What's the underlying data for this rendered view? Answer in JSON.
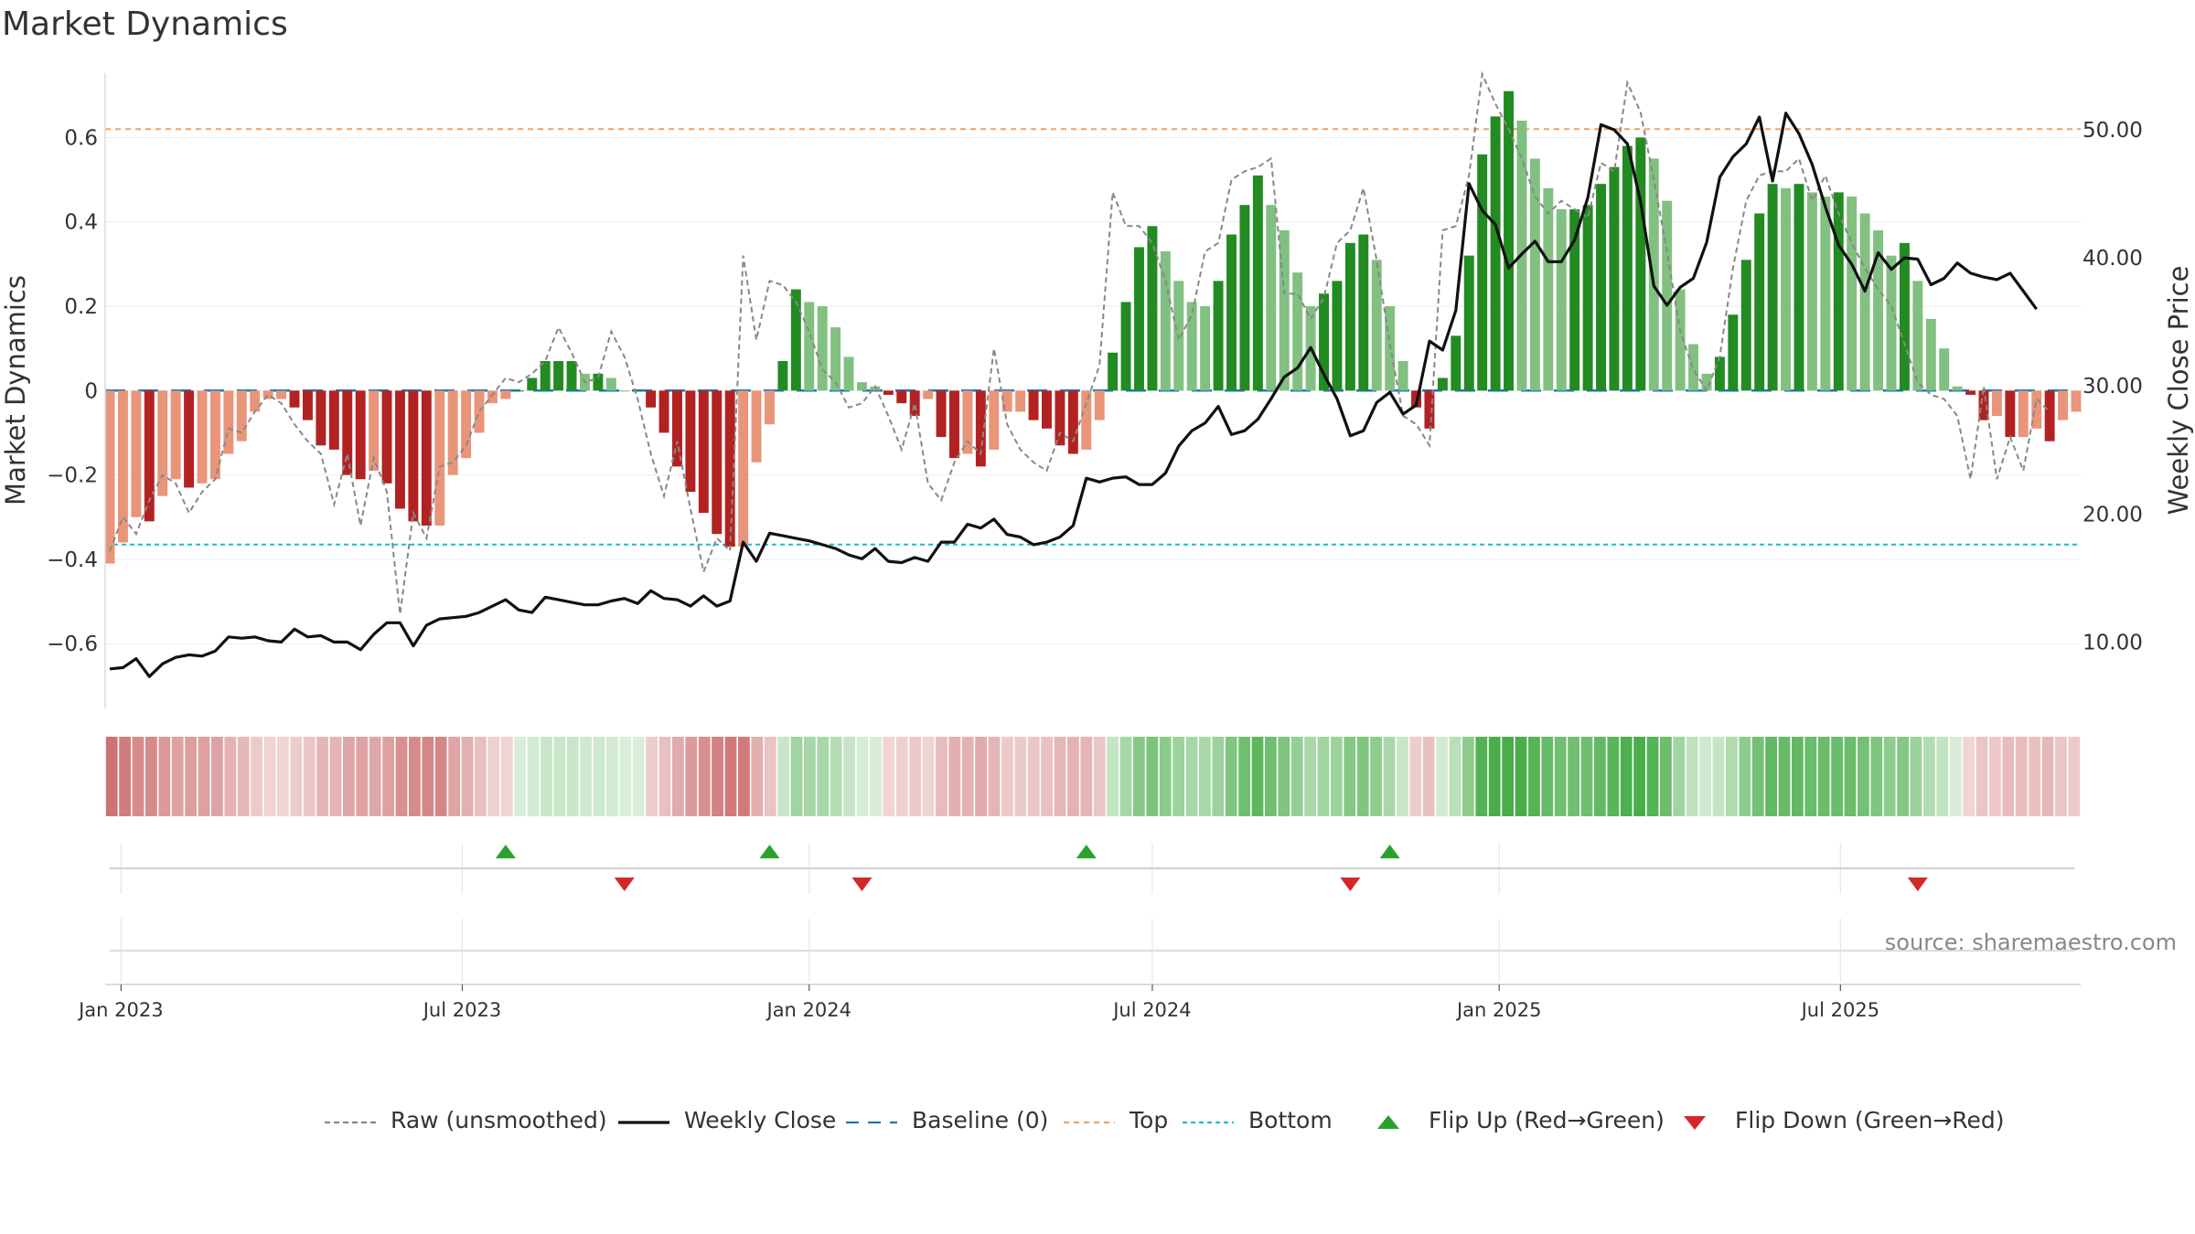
{
  "title": "Market Dynamics",
  "source": "source: sharemaestro.com",
  "colors": {
    "strong_green": "#228b22",
    "light_green": "#81c081",
    "strong_red": "#b22222",
    "light_red": "#e8957a",
    "raw": "#888888",
    "close": "#111111",
    "baseline": "#1f77b4",
    "top": "#f4a261",
    "bottom": "#17becf",
    "flip_up": "#2ca02c",
    "flip_down": "#d62728"
  },
  "legend": [
    {
      "key": "raw",
      "label": "Raw (unsmoothed)"
    },
    {
      "key": "close",
      "label": "Weekly Close"
    },
    {
      "key": "baseline",
      "label": "Baseline (0)"
    },
    {
      "key": "top",
      "label": "Top"
    },
    {
      "key": "bottom",
      "label": "Bottom"
    },
    {
      "key": "flip_up",
      "label": "Flip Up (Red→Green)"
    },
    {
      "key": "flip_down",
      "label": "Flip Down (Green→Red)"
    }
  ],
  "chart_data": {
    "type": "bar",
    "ylabel": "Market Dynamics",
    "y2label": "Weekly Close Price",
    "ylim": [
      -0.76,
      0.77
    ],
    "y2lim": [
      4.6,
      55.0
    ],
    "yticks": [
      -0.6,
      -0.4,
      -0.2,
      0,
      0.2,
      0.4,
      0.6
    ],
    "ytick_labels": [
      "−0.6",
      "−0.4",
      "−0.2",
      "0",
      "0.2",
      "0.4",
      "0.6"
    ],
    "y2ticks": [
      10,
      20,
      30,
      40,
      50
    ],
    "y2tick_labels": [
      "10.00",
      "20.00",
      "30.00",
      "40.00",
      "50.00"
    ],
    "x_start": "2022-12-26",
    "x_step_days": 7,
    "x_end_label": "2025-09",
    "xticks": [
      {
        "date": "2023-01-01",
        "label": "Jan 2023"
      },
      {
        "date": "2023-07-01",
        "label": "Jul 2023"
      },
      {
        "date": "2024-01-01",
        "label": "Jan 2024"
      },
      {
        "date": "2024-07-01",
        "label": "Jul 2024"
      },
      {
        "date": "2025-01-01",
        "label": "Jan 2025"
      },
      {
        "date": "2025-07-01",
        "label": "Jul 2025"
      }
    ],
    "top_threshold": 0.62,
    "bottom_threshold": -0.365,
    "baseline": 0,
    "series": [
      {
        "name": "Market Dynamics (smoothed)",
        "values": [
          -0.41,
          -0.36,
          -0.3,
          -0.31,
          -0.25,
          -0.21,
          -0.23,
          -0.22,
          -0.21,
          -0.15,
          -0.12,
          -0.05,
          -0.02,
          -0.02,
          -0.04,
          -0.07,
          -0.13,
          -0.14,
          -0.2,
          -0.21,
          -0.19,
          -0.22,
          -0.28,
          -0.31,
          -0.32,
          -0.32,
          -0.2,
          -0.16,
          -0.1,
          -0.03,
          -0.02,
          0.0,
          0.03,
          0.07,
          0.07,
          0.07,
          0.04,
          0.04,
          0.03,
          0.0,
          0.0,
          -0.04,
          -0.1,
          -0.18,
          -0.24,
          -0.29,
          -0.34,
          -0.37,
          -0.37,
          -0.17,
          -0.08,
          0.07,
          0.24,
          0.21,
          0.2,
          0.15,
          0.08,
          0.02,
          0.01,
          -0.01,
          -0.03,
          -0.06,
          -0.02,
          -0.11,
          -0.16,
          -0.15,
          -0.18,
          -0.14,
          -0.05,
          -0.05,
          -0.07,
          -0.09,
          -0.13,
          -0.15,
          -0.14,
          -0.07,
          0.09,
          0.21,
          0.34,
          0.39,
          0.33,
          0.26,
          0.21,
          0.2,
          0.26,
          0.37,
          0.44,
          0.51,
          0.44,
          0.38,
          0.28,
          0.2,
          0.23,
          0.26,
          0.35,
          0.37,
          0.31,
          0.2,
          0.07,
          -0.04,
          -0.09,
          0.03,
          0.13,
          0.32,
          0.56,
          0.65,
          0.71,
          0.64,
          0.55,
          0.48,
          0.43,
          0.43,
          0.44,
          0.49,
          0.53,
          0.58,
          0.6,
          0.55,
          0.45,
          0.24,
          0.11,
          0.04,
          0.08,
          0.18,
          0.31,
          0.42,
          0.49,
          0.48,
          0.49,
          0.47,
          0.46,
          0.47,
          0.46,
          0.42,
          0.38,
          0.32,
          0.35,
          0.26,
          0.17,
          0.1,
          0.01,
          -0.01,
          -0.07,
          -0.06,
          -0.11,
          -0.11,
          -0.09,
          -0.12,
          -0.07,
          -0.05
        ]
      },
      {
        "name": "Raw (unsmoothed)",
        "values": [
          -0.38,
          -0.3,
          -0.34,
          -0.26,
          -0.2,
          -0.22,
          -0.29,
          -0.24,
          -0.21,
          -0.09,
          -0.1,
          -0.05,
          -0.01,
          -0.03,
          -0.08,
          -0.12,
          -0.15,
          -0.27,
          -0.15,
          -0.32,
          -0.16,
          -0.24,
          -0.53,
          -0.29,
          -0.35,
          -0.18,
          -0.17,
          -0.13,
          -0.05,
          -0.01,
          0.03,
          0.02,
          0.04,
          0.07,
          0.15,
          0.09,
          0.02,
          0.03,
          0.14,
          0.08,
          -0.02,
          -0.15,
          -0.25,
          -0.12,
          -0.28,
          -0.43,
          -0.35,
          -0.38,
          0.32,
          0.12,
          0.26,
          0.25,
          0.21,
          0.14,
          0.05,
          0.02,
          -0.04,
          -0.03,
          0.01,
          -0.06,
          -0.14,
          -0.03,
          -0.22,
          -0.26,
          -0.17,
          -0.12,
          -0.15,
          0.1,
          -0.08,
          -0.14,
          -0.17,
          -0.19,
          -0.1,
          -0.12,
          -0.03,
          0.06,
          0.47,
          0.39,
          0.39,
          0.35,
          0.26,
          0.12,
          0.18,
          0.33,
          0.35,
          0.5,
          0.52,
          0.53,
          0.55,
          0.23,
          0.23,
          0.17,
          0.22,
          0.35,
          0.38,
          0.48,
          0.31,
          0.11,
          -0.06,
          -0.08,
          -0.13,
          0.38,
          0.39,
          0.51,
          0.75,
          0.68,
          0.62,
          0.55,
          0.46,
          0.42,
          0.45,
          0.43,
          0.41,
          0.54,
          0.52,
          0.73,
          0.66,
          0.5,
          0.33,
          0.14,
          0.05,
          0.0,
          0.08,
          0.29,
          0.45,
          0.51,
          0.52,
          0.52,
          0.55,
          0.45,
          0.51,
          0.42,
          0.35,
          0.29,
          0.24,
          0.2,
          0.11,
          0.02,
          -0.01,
          -0.02,
          -0.06,
          -0.21,
          0.01,
          -0.21,
          -0.11,
          -0.19,
          -0.02,
          -0.05
        ]
      },
      {
        "name": "Weekly Close",
        "values": [
          7.9,
          8.0,
          8.7,
          7.3,
          8.3,
          8.8,
          9.0,
          8.9,
          9.3,
          10.4,
          10.3,
          10.4,
          10.1,
          10.0,
          11.0,
          10.4,
          10.5,
          10.0,
          10.0,
          9.4,
          10.6,
          11.5,
          11.5,
          9.7,
          11.3,
          11.8,
          11.9,
          12.0,
          12.3,
          12.8,
          13.3,
          12.5,
          12.3,
          13.5,
          13.3,
          13.1,
          12.9,
          12.9,
          13.2,
          13.4,
          13.0,
          14.0,
          13.4,
          13.3,
          12.8,
          13.6,
          12.8,
          13.2,
          17.8,
          16.3,
          18.5,
          18.3,
          18.1,
          17.9,
          17.6,
          17.3,
          16.8,
          16.5,
          17.3,
          16.3,
          16.2,
          16.6,
          16.3,
          17.8,
          17.8,
          19.2,
          18.9,
          19.6,
          18.4,
          18.2,
          17.6,
          17.8,
          18.2,
          19.1,
          22.8,
          22.5,
          22.8,
          22.9,
          22.3,
          22.3,
          23.2,
          25.3,
          26.5,
          27.1,
          28.4,
          26.2,
          26.5,
          27.4,
          29.0,
          30.7,
          31.4,
          33.0,
          30.9,
          29.0,
          26.1,
          26.5,
          28.7,
          29.5,
          27.8,
          28.5,
          33.5,
          32.8,
          35.9,
          45.8,
          43.7,
          42.6,
          39.2,
          40.3,
          41.3,
          39.7,
          39.7,
          41.4,
          44.7,
          50.4,
          50.0,
          48.9,
          44.4,
          37.8,
          36.3,
          37.7,
          38.4,
          41.2,
          46.3,
          47.9,
          48.9,
          51.0,
          46.0,
          51.3,
          49.7,
          47.3,
          44.0,
          41.0,
          39.5,
          37.4,
          40.4,
          39.1,
          40.0,
          39.9,
          37.9,
          38.4,
          39.6,
          38.8,
          38.5,
          38.3,
          38.8,
          37.4,
          36.0
        ]
      }
    ],
    "flip_up_dates": [
      "2023-07-24",
      "2023-12-11",
      "2024-05-27",
      "2024-11-04"
    ],
    "flip_down_dates": [
      "2023-09-25",
      "2024-01-29",
      "2024-10-14",
      "2025-08-11"
    ]
  }
}
